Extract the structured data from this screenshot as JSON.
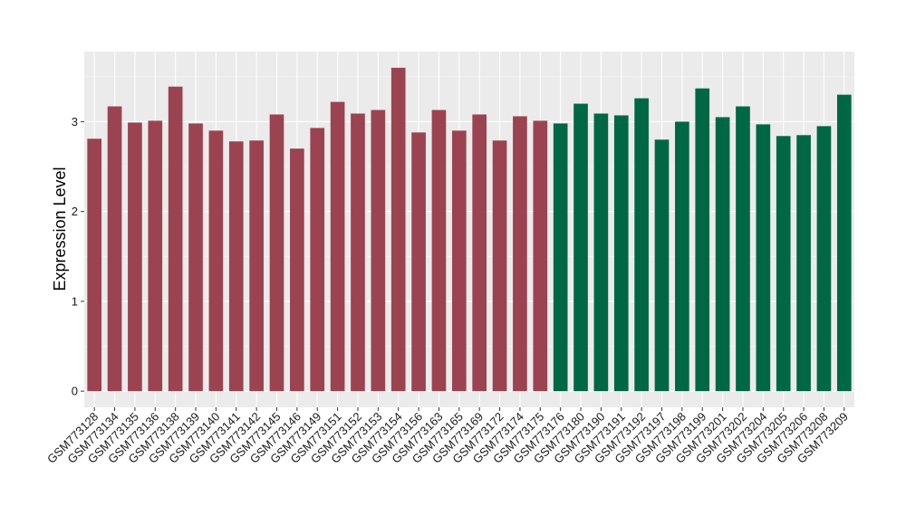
{
  "chart_data": {
    "type": "bar",
    "title": "",
    "xlabel": "",
    "ylabel": "Expression Level",
    "ylim": [
      -0.18,
      3.78
    ],
    "yticks": [
      0,
      1,
      2,
      3
    ],
    "grid": true,
    "panel_background": "#ebebeb",
    "group_colors": [
      "#9b4350",
      "#006745"
    ],
    "categories": [
      "GSM773128",
      "GSM773134",
      "GSM773135",
      "GSM773136",
      "GSM773138",
      "GSM773139",
      "GSM773140",
      "GSM773141",
      "GSM773142",
      "GSM773145",
      "GSM773146",
      "GSM773149",
      "GSM773151",
      "GSM773152",
      "GSM773153",
      "GSM773154",
      "GSM773156",
      "GSM773163",
      "GSM773165",
      "GSM773169",
      "GSM773172",
      "GSM773174",
      "GSM773175",
      "GSM773176",
      "GSM773180",
      "GSM773190",
      "GSM773191",
      "GSM773192",
      "GSM773197",
      "GSM773198",
      "GSM773199",
      "GSM773201",
      "GSM773202",
      "GSM773204",
      "GSM773205",
      "GSM773206",
      "GSM773208",
      "GSM773209"
    ],
    "values": [
      2.81,
      3.17,
      2.99,
      3.01,
      3.39,
      2.98,
      2.9,
      2.78,
      2.79,
      3.08,
      2.7,
      2.93,
      3.22,
      3.09,
      3.13,
      3.6,
      2.88,
      3.13,
      2.9,
      3.08,
      2.79,
      3.06,
      3.01,
      2.98,
      3.2,
      3.09,
      3.07,
      3.26,
      2.8,
      3.0,
      3.37,
      3.05,
      3.17,
      2.97,
      2.84,
      2.85,
      2.95,
      3.3
    ],
    "groups": [
      0,
      0,
      0,
      0,
      0,
      0,
      0,
      0,
      0,
      0,
      0,
      0,
      0,
      0,
      0,
      0,
      0,
      0,
      0,
      0,
      0,
      0,
      0,
      1,
      1,
      1,
      1,
      1,
      1,
      1,
      1,
      1,
      1,
      1,
      1,
      1,
      1,
      1
    ]
  }
}
